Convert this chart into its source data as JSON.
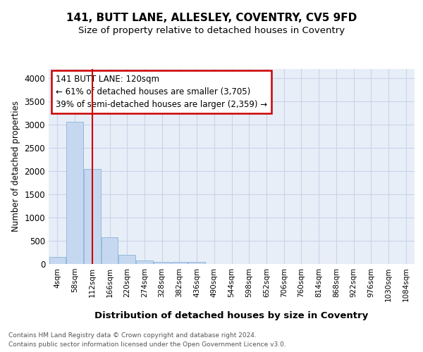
{
  "title": "141, BUTT LANE, ALLESLEY, COVENTRY, CV5 9FD",
  "subtitle": "Size of property relative to detached houses in Coventry",
  "xlabel": "Distribution of detached houses by size in Coventry",
  "ylabel": "Number of detached properties",
  "categories": [
    "4sqm",
    "58sqm",
    "112sqm",
    "166sqm",
    "220sqm",
    "274sqm",
    "328sqm",
    "382sqm",
    "436sqm",
    "490sqm",
    "544sqm",
    "598sqm",
    "652sqm",
    "706sqm",
    "760sqm",
    "814sqm",
    "868sqm",
    "922sqm",
    "976sqm",
    "1030sqm",
    "1084sqm"
  ],
  "values": [
    150,
    3050,
    2050,
    575,
    200,
    75,
    50,
    50,
    50,
    0,
    0,
    0,
    0,
    0,
    0,
    0,
    0,
    0,
    0,
    0,
    0
  ],
  "bar_color": "#c5d8f0",
  "bar_edge_color": "#8ab4d8",
  "vline_x_index": 2,
  "vline_color": "#cc0000",
  "annotation_text": "141 BUTT LANE: 120sqm\n← 61% of detached houses are smaller (3,705)\n39% of semi-detached houses are larger (2,359) →",
  "annotation_box_color": "#ffffff",
  "annotation_box_edge": "#cc0000",
  "ylim": [
    0,
    4200
  ],
  "yticks": [
    0,
    500,
    1000,
    1500,
    2000,
    2500,
    3000,
    3500,
    4000
  ],
  "footer1": "Contains HM Land Registry data © Crown copyright and database right 2024.",
  "footer2": "Contains public sector information licensed under the Open Government Licence v3.0.",
  "bg_color": "#ffffff",
  "plot_bg_color": "#e8eef8",
  "grid_color": "#c8d4e8"
}
